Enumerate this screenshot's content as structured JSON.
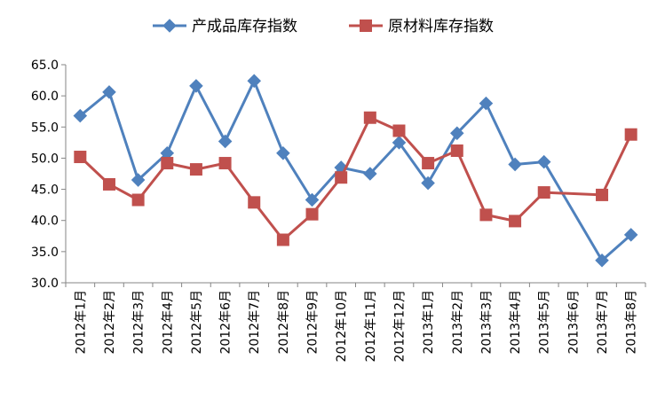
{
  "chart_data": {
    "type": "line",
    "title": "",
    "xlabel": "",
    "ylabel": "",
    "ylim": [
      30.0,
      65.0
    ],
    "yticks": [
      "30.0",
      "35.0",
      "40.0",
      "45.0",
      "50.0",
      "55.0",
      "60.0",
      "65.0"
    ],
    "grid": false,
    "legend_position": "top-center",
    "categories": [
      "2012年1月",
      "2012年2月",
      "2012年3月",
      "2012年4月",
      "2012年5月",
      "2012年6月",
      "2012年7月",
      "2012年8月",
      "2012年9月",
      "2012年10月",
      "2012年11月",
      "2012年12月",
      "2013年1月",
      "2013年2月",
      "2013年3月",
      "2013年4月",
      "2013年5月",
      "2013年6月",
      "2013年7月",
      "2013年8月"
    ],
    "series": [
      {
        "name": "产成品库存指数",
        "color": "#4F81BD",
        "marker": "diamond",
        "values": [
          56.8,
          60.6,
          46.5,
          50.8,
          61.6,
          52.7,
          62.4,
          50.8,
          43.3,
          48.5,
          47.5,
          52.5,
          46.0,
          54.0,
          58.8,
          49.0,
          49.4,
          null,
          33.6,
          37.7
        ]
      },
      {
        "name": "原材料库存指数",
        "color": "#C0504D",
        "marker": "square",
        "values": [
          50.2,
          45.8,
          43.3,
          49.2,
          48.2,
          49.2,
          42.9,
          36.9,
          41.0,
          46.9,
          56.5,
          54.4,
          49.2,
          51.2,
          40.9,
          39.9,
          44.5,
          null,
          44.1,
          53.8
        ]
      }
    ]
  }
}
